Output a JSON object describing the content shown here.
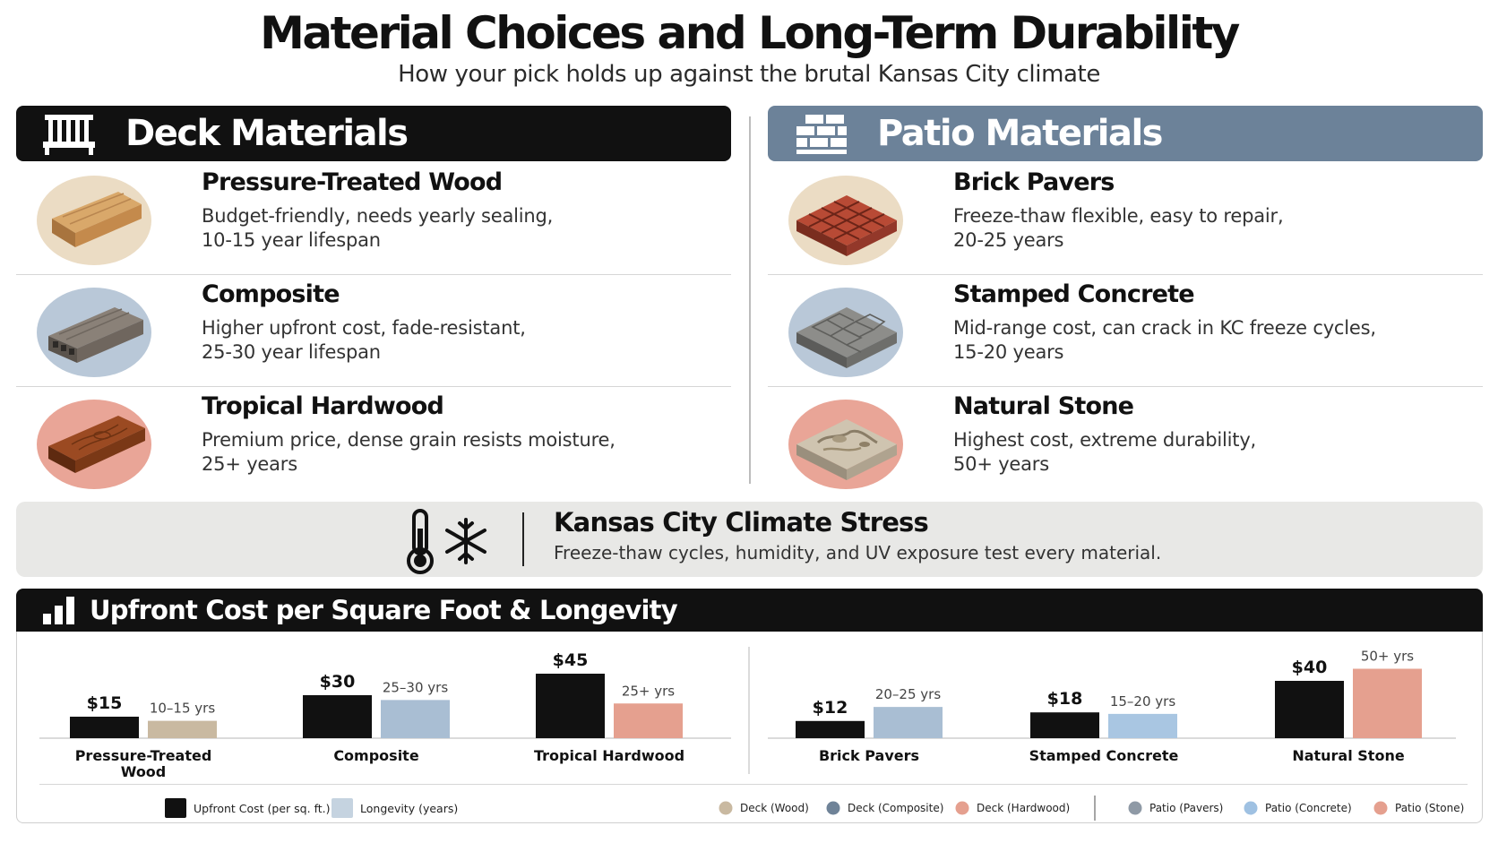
{
  "header": {
    "title": "Material Choices and Long-Term  Durability",
    "subtitle": "How your pick holds up against the brutal Kansas City climate"
  },
  "deck": {
    "heading": "Deck Materials",
    "icon": "deck-railing-icon",
    "items": [
      {
        "name": "Pressure-Treated Wood",
        "desc1": "Budget-friendly, needs yearly sealing,",
        "desc2": "10-15 year lifespan",
        "image": "pressure-treated-board-image"
      },
      {
        "name": "Composite",
        "desc1": "Higher upfront cost, fade-resistant,",
        "desc2": "25-30 year lifespan",
        "image": "composite-board-image"
      },
      {
        "name": "Tropical Hardwood",
        "desc1": "Premium price, dense grain resists moisture,",
        "desc2": "25+ years",
        "image": "hardwood-board-image"
      }
    ]
  },
  "patio": {
    "heading": "Patio Materials",
    "icon": "bricks-icon",
    "items": [
      {
        "name": "Brick Pavers",
        "desc1": "Freeze-thaw flexible, easy to repair,",
        "desc2": "20-25 years",
        "image": "brick-pavers-image"
      },
      {
        "name": "Stamped Concrete",
        "desc1": "Mid-range cost, can crack in KC freeze cycles,",
        "desc2": "15-20 years",
        "image": "stamped-concrete-image"
      },
      {
        "name": "Natural Stone",
        "desc1": "Highest cost, extreme durability,",
        "desc2": "50+ years",
        "image": "natural-stone-image"
      }
    ]
  },
  "climate": {
    "title": "Kansas City Climate Stress",
    "text": "Freeze-thaw cycles, humidity, and UV exposure test every material.",
    "icons": [
      "thermometer-icon",
      "snowflake-icon"
    ]
  },
  "chart_section": {
    "heading": "Upfront Cost per Square Foot & Longevity",
    "icon": "bar-chart-icon"
  },
  "colors": {
    "cost_bar": "#111111",
    "deck_wood": "#c9b9a1",
    "deck_composite": "#a9bed3",
    "deck_hardwood": "#e5a08f",
    "patio_pavers": "#a9bed3",
    "patio_concrete": "#a9c6e2",
    "patio_stone": "#e5a08f",
    "patio_header": "#6c8299"
  },
  "chart_data": [
    {
      "type": "bar",
      "group": "Deck",
      "categories": [
        "Pressure-Treated Wood",
        "Composite",
        "Tropical Hardwood"
      ],
      "category_labels": [
        [
          "Pressure-Treated",
          "Wood"
        ],
        [
          "Composite"
        ],
        [
          "Tropical Hardwood"
        ]
      ],
      "series": [
        {
          "name": "Upfront Cost (per sq. ft.)",
          "values": [
            15,
            30,
            45
          ],
          "labels": [
            "$15",
            "$30",
            "$45"
          ]
        },
        {
          "name": "Longevity (years)",
          "values": [
            12.5,
            27.5,
            25
          ],
          "labels": [
            "10–15 yrs",
            "25–30 yrs",
            "25+ yrs"
          ]
        }
      ]
    },
    {
      "type": "bar",
      "group": "Patio",
      "categories": [
        "Brick Pavers",
        "Stamped Concrete",
        "Natural Stone"
      ],
      "category_labels": [
        [
          "Brick Pavers"
        ],
        [
          "Stamped Concrete"
        ],
        [
          "Natural Stone"
        ]
      ],
      "series": [
        {
          "name": "Upfront Cost (per sq. ft.)",
          "values": [
            12,
            18,
            40
          ],
          "labels": [
            "$12",
            "$18",
            "$40"
          ]
        },
        {
          "name": "Longevity (years)",
          "values": [
            22.5,
            17.5,
            50
          ],
          "labels": [
            "20–25 yrs",
            "15–20 yrs",
            "50+ yrs"
          ]
        }
      ]
    }
  ],
  "legend": {
    "left": [
      {
        "label": "Upfront Cost (per sq. ft.)",
        "color": "#111111"
      },
      {
        "label": "Longevity (years)",
        "color": "#c5d3e0"
      }
    ],
    "right": [
      {
        "label": "Deck (Wood)",
        "color": "#c9b9a1"
      },
      {
        "label": "Deck (Composite)",
        "color": "#6f8398"
      },
      {
        "label": "Deck (Hardwood)",
        "color": "#e5a08f"
      },
      {
        "label": "Patio (Pavers)",
        "color": "#8f9aa6"
      },
      {
        "label": "Patio (Concrete)",
        "color": "#9fc1e2"
      },
      {
        "label": "Patio (Stone)",
        "color": "#e5a08f"
      }
    ]
  }
}
